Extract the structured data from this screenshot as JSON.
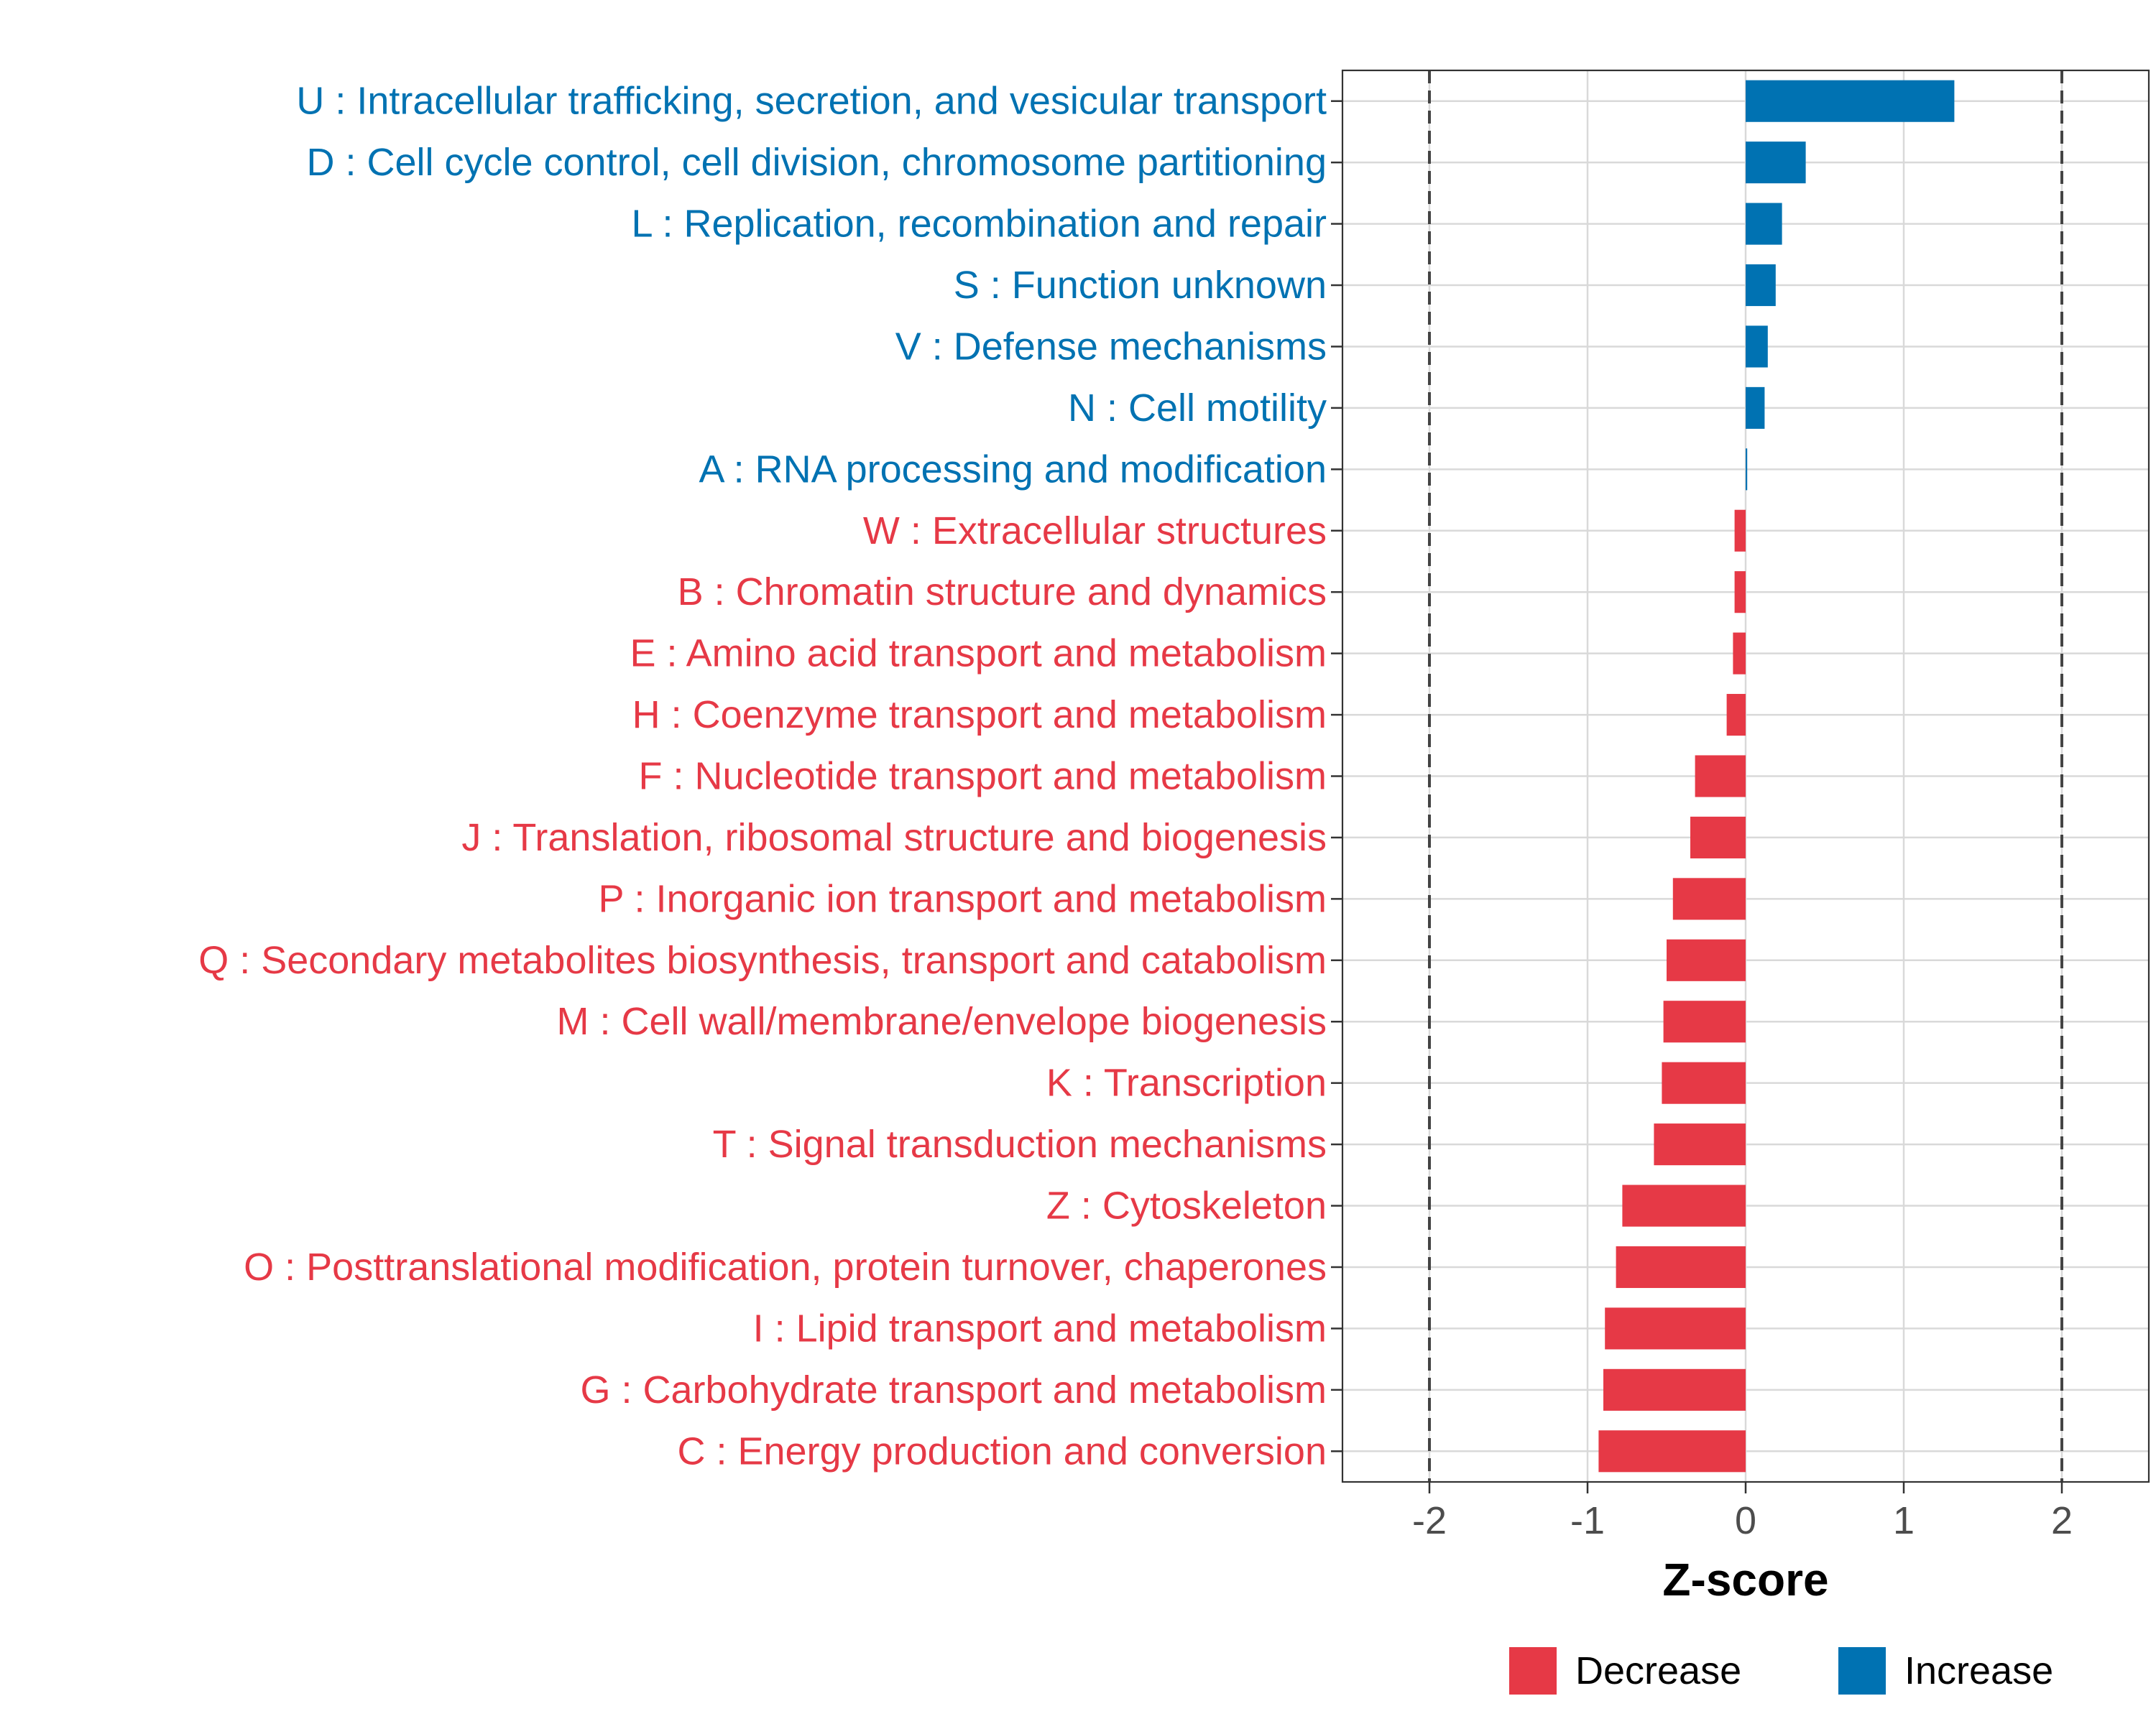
{
  "colors": {
    "decrease": "#e63946",
    "increase": "#0072b2",
    "axis": "#333333",
    "grid": "#d9d9d9",
    "text": "#000000",
    "tick_text": "#4d4d4d"
  },
  "chart_data": {
    "type": "bar",
    "orientation": "horizontal",
    "xlabel": "Z-score",
    "xlim": [
      -2.55,
      2.55
    ],
    "xticks": [
      -2,
      -1,
      0,
      1,
      2
    ],
    "xtick_labels": [
      "-2",
      "-1",
      "0",
      "1",
      "2"
    ],
    "reference_lines": [
      -2,
      2
    ],
    "grid": true,
    "legend_position": "bottom",
    "legend": [
      {
        "key": "decrease",
        "label": "Decrease"
      },
      {
        "key": "increase",
        "label": "Increase"
      }
    ],
    "categories": [
      "U : Intracellular trafficking, secretion, and vesicular transport",
      "D : Cell cycle control, cell division, chromosome partitioning",
      "L : Replication, recombination and repair",
      "S : Function unknown",
      "V : Defense mechanisms",
      "N : Cell motility",
      "A : RNA processing and modification",
      "W : Extracellular structures",
      "B : Chromatin structure and dynamics",
      "E : Amino acid transport and metabolism",
      "H : Coenzyme transport and metabolism",
      "F : Nucleotide transport and metabolism",
      "J : Translation, ribosomal structure and biogenesis",
      "P : Inorganic ion transport and metabolism",
      "Q : Secondary metabolites biosynthesis, transport and catabolism",
      "M : Cell wall/membrane/envelope biogenesis",
      "K : Transcription",
      "T : Signal transduction mechanisms",
      "Z : Cytoskeleton",
      "O : Posttranslational modification, protein turnover, chaperones",
      "I : Lipid transport and metabolism",
      "G : Carbohydrate transport and metabolism",
      "C : Energy production and conversion"
    ],
    "values": [
      1.32,
      0.38,
      0.23,
      0.19,
      0.14,
      0.12,
      0.01,
      -0.07,
      -0.07,
      -0.08,
      -0.12,
      -0.32,
      -0.35,
      -0.46,
      -0.5,
      -0.52,
      -0.53,
      -0.58,
      -0.78,
      -0.82,
      -0.89,
      -0.9,
      -0.93
    ],
    "groups": [
      "increase",
      "increase",
      "increase",
      "increase",
      "increase",
      "increase",
      "increase",
      "decrease",
      "decrease",
      "decrease",
      "decrease",
      "decrease",
      "decrease",
      "decrease",
      "decrease",
      "decrease",
      "decrease",
      "decrease",
      "decrease",
      "decrease",
      "decrease",
      "decrease",
      "decrease"
    ]
  }
}
